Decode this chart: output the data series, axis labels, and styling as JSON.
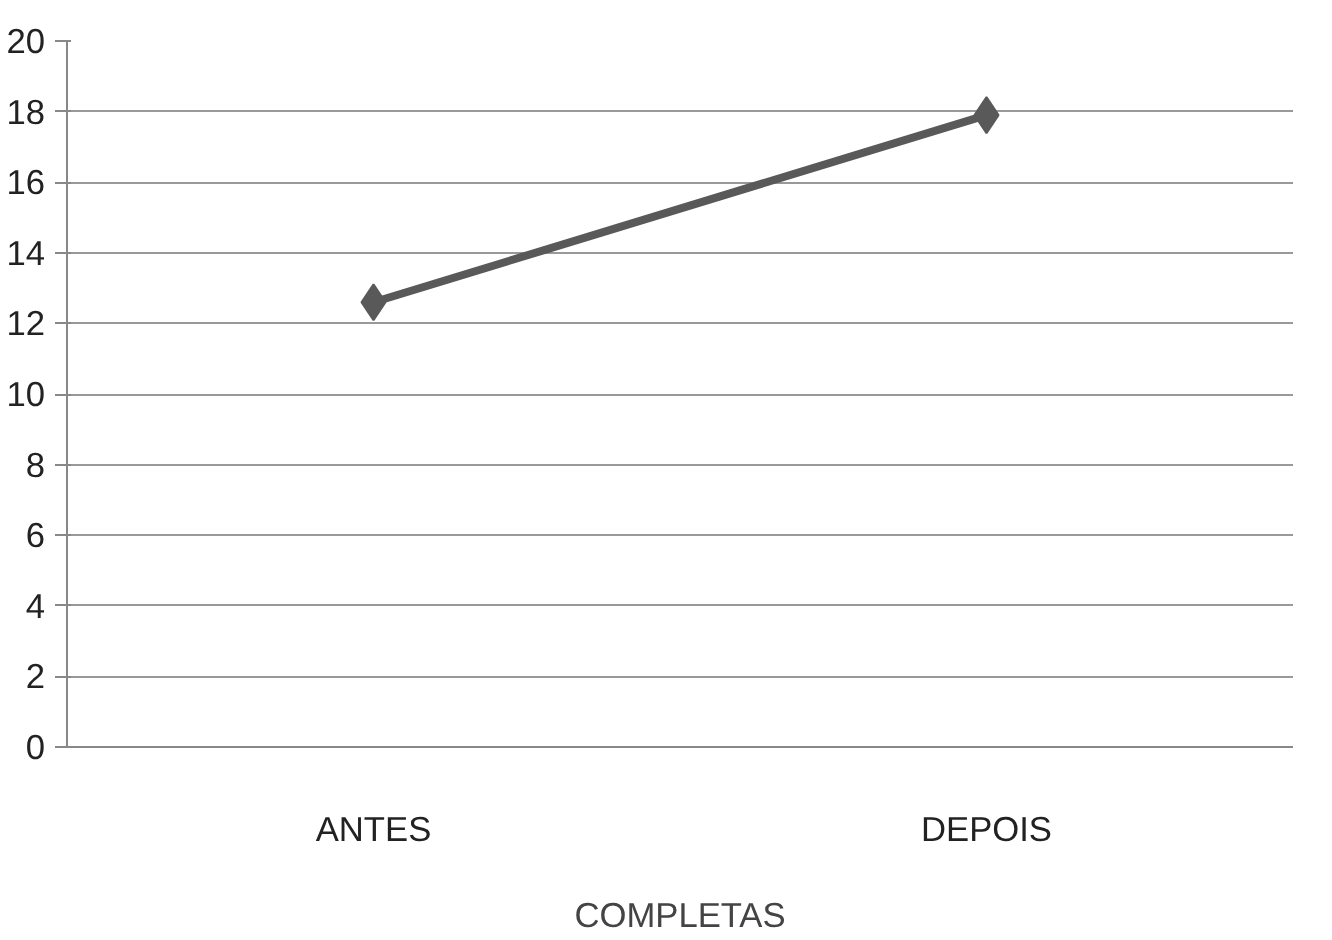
{
  "chart_data": {
    "type": "line",
    "categories": [
      "ANTES",
      "DEPOIS"
    ],
    "xlabel": "COMPLETAS",
    "series": [
      {
        "color": "#595959",
        "values": [
          12.6,
          17.9
        ]
      }
    ],
    "ylim": [
      0,
      20
    ],
    "yticks": [
      0,
      2,
      4,
      6,
      8,
      10,
      12,
      14,
      16,
      18,
      20
    ],
    "grid": "y",
    "marker": "diamond",
    "line_style": "solid"
  }
}
